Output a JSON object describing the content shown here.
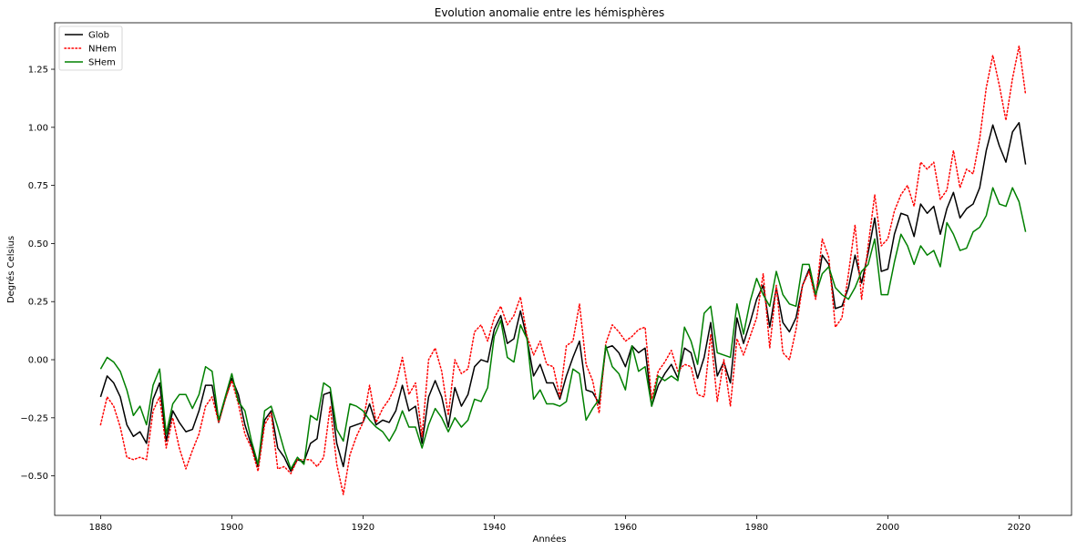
{
  "chart_data": {
    "type": "line",
    "title": "Evolution anomalie entre les hémisphères",
    "xlabel": "Années",
    "ylabel": "Degrés Celsius",
    "xlim": [
      1873,
      2028
    ],
    "ylim": [
      -0.67,
      1.45
    ],
    "xticks": [
      1880,
      1900,
      1920,
      1940,
      1960,
      1980,
      2000,
      2020
    ],
    "yticks": [
      -0.5,
      -0.25,
      0.0,
      0.25,
      0.5,
      0.75,
      1.0,
      1.25
    ],
    "ytick_labels": [
      "−0.50",
      "−0.25",
      "0.00",
      "0.25",
      "0.50",
      "0.75",
      "1.00",
      "1.25"
    ],
    "grid": false,
    "legend_position": "top-left",
    "x_start": 1880,
    "series": [
      {
        "name": "Glob",
        "color": "#000000",
        "style": "solid",
        "values": [
          -0.16,
          -0.07,
          -0.1,
          -0.16,
          -0.28,
          -0.33,
          -0.31,
          -0.36,
          -0.17,
          -0.1,
          -0.35,
          -0.22,
          -0.27,
          -0.31,
          -0.3,
          -0.22,
          -0.11,
          -0.11,
          -0.27,
          -0.17,
          -0.08,
          -0.15,
          -0.28,
          -0.37,
          -0.46,
          -0.26,
          -0.22,
          -0.38,
          -0.42,
          -0.48,
          -0.43,
          -0.44,
          -0.36,
          -0.34,
          -0.15,
          -0.14,
          -0.36,
          -0.46,
          -0.29,
          -0.28,
          -0.27,
          -0.19,
          -0.28,
          -0.26,
          -0.27,
          -0.22,
          -0.11,
          -0.22,
          -0.2,
          -0.36,
          -0.16,
          -0.09,
          -0.16,
          -0.29,
          -0.12,
          -0.2,
          -0.15,
          -0.03,
          0.0,
          -0.01,
          0.13,
          0.19,
          0.07,
          0.09,
          0.21,
          0.09,
          -0.07,
          -0.02,
          -0.1,
          -0.1,
          -0.17,
          -0.07,
          0.01,
          0.08,
          -0.13,
          -0.14,
          -0.19,
          0.05,
          0.06,
          0.03,
          -0.03,
          0.06,
          0.03,
          0.05,
          -0.2,
          -0.11,
          -0.06,
          -0.02,
          -0.08,
          0.05,
          0.03,
          -0.08,
          0.01,
          0.16,
          -0.07,
          -0.01,
          -0.1,
          0.18,
          0.07,
          0.16,
          0.26,
          0.32,
          0.14,
          0.31,
          0.16,
          0.12,
          0.18,
          0.32,
          0.39,
          0.27,
          0.45,
          0.41,
          0.22,
          0.23,
          0.31,
          0.45,
          0.33,
          0.46,
          0.61,
          0.38,
          0.39,
          0.54,
          0.63,
          0.62,
          0.53,
          0.67,
          0.63,
          0.66,
          0.54,
          0.65,
          0.72,
          0.61,
          0.65,
          0.67,
          0.74,
          0.9,
          1.01,
          0.92,
          0.85,
          0.98,
          1.02,
          0.84
        ]
      },
      {
        "name": "NHem",
        "color": "#ff0000",
        "style": "dotted",
        "values": [
          -0.28,
          -0.16,
          -0.2,
          -0.29,
          -0.42,
          -0.43,
          -0.42,
          -0.43,
          -0.22,
          -0.16,
          -0.38,
          -0.25,
          -0.38,
          -0.47,
          -0.39,
          -0.32,
          -0.2,
          -0.16,
          -0.27,
          -0.17,
          -0.09,
          -0.19,
          -0.32,
          -0.38,
          -0.48,
          -0.28,
          -0.23,
          -0.47,
          -0.46,
          -0.49,
          -0.43,
          -0.43,
          -0.43,
          -0.46,
          -0.42,
          -0.2,
          -0.45,
          -0.58,
          -0.41,
          -0.33,
          -0.27,
          -0.11,
          -0.27,
          -0.21,
          -0.17,
          -0.11,
          0.01,
          -0.15,
          -0.1,
          -0.33,
          0.0,
          0.05,
          -0.05,
          -0.24,
          0.0,
          -0.06,
          -0.04,
          0.12,
          0.15,
          0.08,
          0.18,
          0.23,
          0.15,
          0.19,
          0.27,
          0.1,
          0.02,
          0.08,
          -0.02,
          -0.03,
          -0.16,
          0.06,
          0.08,
          0.24,
          -0.02,
          -0.09,
          -0.23,
          0.07,
          0.15,
          0.12,
          0.08,
          0.1,
          0.13,
          0.14,
          -0.17,
          -0.05,
          -0.01,
          0.04,
          -0.05,
          -0.02,
          -0.03,
          -0.15,
          -0.16,
          0.11,
          -0.18,
          0.0,
          -0.2,
          0.09,
          0.02,
          0.1,
          0.18,
          0.37,
          0.05,
          0.32,
          0.03,
          0.0,
          0.13,
          0.32,
          0.38,
          0.26,
          0.52,
          0.44,
          0.14,
          0.18,
          0.37,
          0.58,
          0.26,
          0.49,
          0.71,
          0.49,
          0.52,
          0.64,
          0.71,
          0.75,
          0.66,
          0.85,
          0.82,
          0.85,
          0.69,
          0.73,
          0.9,
          0.74,
          0.82,
          0.8,
          0.95,
          1.17,
          1.31,
          1.18,
          1.03,
          1.21,
          1.35,
          1.14
        ]
      },
      {
        "name": "SHem",
        "color": "#008000",
        "style": "solid",
        "values": [
          -0.04,
          0.01,
          -0.01,
          -0.05,
          -0.13,
          -0.24,
          -0.2,
          -0.28,
          -0.11,
          -0.04,
          -0.32,
          -0.19,
          -0.15,
          -0.15,
          -0.21,
          -0.15,
          -0.03,
          -0.05,
          -0.26,
          -0.16,
          -0.06,
          -0.18,
          -0.22,
          -0.35,
          -0.45,
          -0.22,
          -0.2,
          -0.29,
          -0.39,
          -0.47,
          -0.42,
          -0.45,
          -0.24,
          -0.26,
          -0.1,
          -0.12,
          -0.3,
          -0.35,
          -0.19,
          -0.2,
          -0.22,
          -0.26,
          -0.29,
          -0.31,
          -0.35,
          -0.3,
          -0.22,
          -0.29,
          -0.29,
          -0.38,
          -0.28,
          -0.21,
          -0.25,
          -0.31,
          -0.25,
          -0.29,
          -0.26,
          -0.17,
          -0.18,
          -0.12,
          0.1,
          0.17,
          0.01,
          -0.01,
          0.15,
          0.09,
          -0.17,
          -0.13,
          -0.19,
          -0.19,
          -0.2,
          -0.18,
          -0.04,
          -0.06,
          -0.26,
          -0.21,
          -0.17,
          0.06,
          -0.03,
          -0.06,
          -0.13,
          0.06,
          -0.05,
          -0.03,
          -0.2,
          -0.07,
          -0.09,
          -0.07,
          -0.09,
          0.14,
          0.08,
          -0.02,
          0.2,
          0.23,
          0.03,
          0.02,
          0.01,
          0.24,
          0.11,
          0.25,
          0.35,
          0.28,
          0.23,
          0.38,
          0.28,
          0.24,
          0.23,
          0.41,
          0.41,
          0.28,
          0.37,
          0.4,
          0.31,
          0.28,
          0.26,
          0.31,
          0.38,
          0.41,
          0.52,
          0.28,
          0.28,
          0.42,
          0.54,
          0.49,
          0.41,
          0.49,
          0.45,
          0.47,
          0.4,
          0.59,
          0.54,
          0.47,
          0.48,
          0.55,
          0.57,
          0.62,
          0.74,
          0.67,
          0.66,
          0.74,
          0.68,
          0.55
        ]
      }
    ]
  }
}
